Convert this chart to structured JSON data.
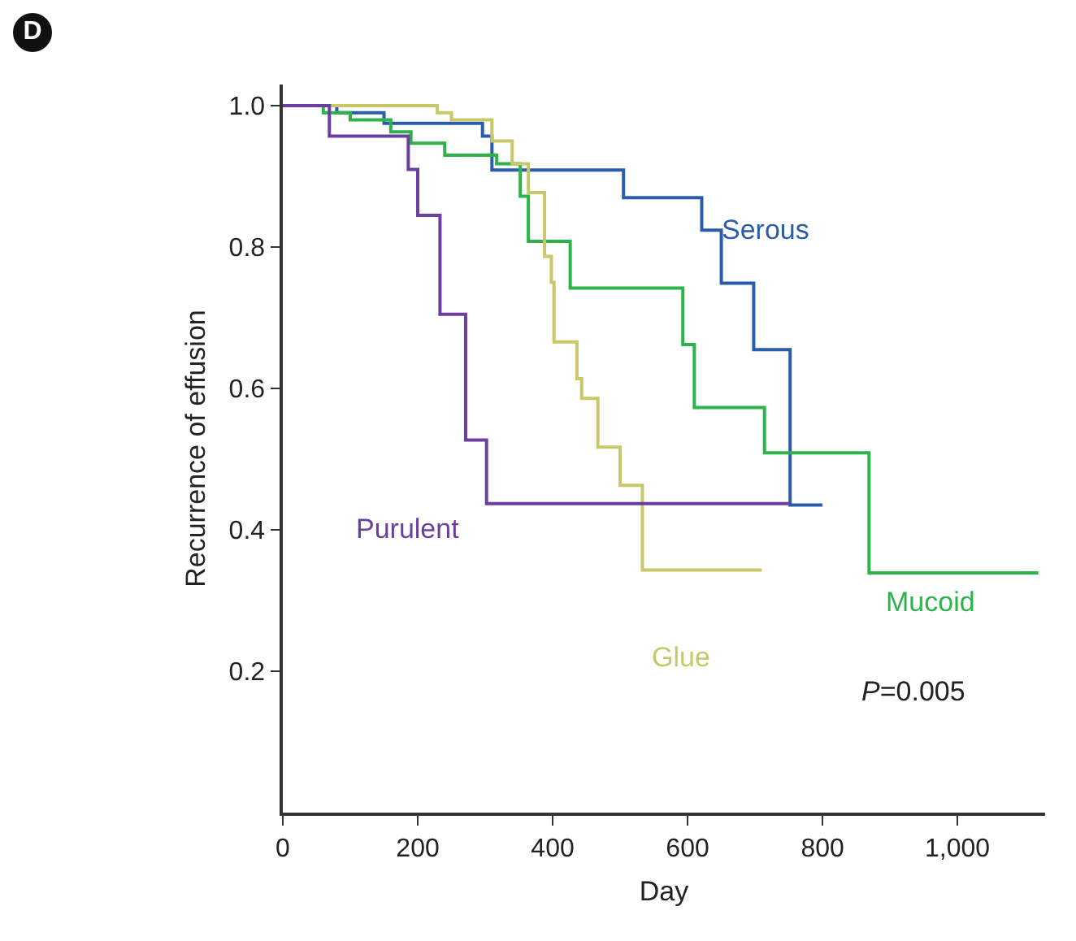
{
  "chart_data": {
    "type": "step",
    "title": "D",
    "xlabel": "Day",
    "ylabel": "Recurrence of effusion",
    "xlim": [
      0,
      1130
    ],
    "ylim": [
      0,
      1.03
    ],
    "xticks": [
      0,
      200,
      400,
      600,
      800,
      {
        "value": 1000,
        "label": "1,000"
      }
    ],
    "yticks": [
      0.2,
      0.4,
      0.6,
      0.8,
      {
        "value": 1,
        "label": "1.0"
      }
    ],
    "grid": false,
    "legend": false,
    "marker": "none",
    "line_style": "solid",
    "annotations": [
      "P=0.005"
    ],
    "series": [
      {
        "name": "Serous",
        "color": "#2a5caa",
        "x": [
          0,
          80,
          150,
          296,
          310,
          505,
          621,
          650,
          698,
          752,
          800
        ],
        "values": [
          1,
          0.99,
          0.975,
          0.957,
          0.909,
          0.87,
          0.824,
          0.749,
          0.655,
          0.435,
          0.435
        ]
      },
      {
        "name": "Mucoid",
        "color": "#2db34a",
        "x": [
          0,
          60,
          100,
          160,
          190,
          240,
          317,
          352,
          364,
          426,
          593,
          610,
          714,
          869,
          1120
        ],
        "values": [
          1,
          0.99,
          0.98,
          0.963,
          0.947,
          0.93,
          0.918,
          0.872,
          0.808,
          0.742,
          0.662,
          0.573,
          0.509,
          0.339,
          0.339
        ]
      },
      {
        "name": "Glue",
        "color": "#c8c86a",
        "x": [
          0,
          229,
          250,
          310,
          340,
          364,
          388,
          398,
          402,
          436,
          443,
          467,
          500,
          533,
          710
        ],
        "values": [
          1,
          0.99,
          0.98,
          0.95,
          0.918,
          0.877,
          0.787,
          0.75,
          0.666,
          0.614,
          0.586,
          0.517,
          0.463,
          0.343,
          0.343
        ]
      },
      {
        "name": "Purulent",
        "color": "#6b3fa0",
        "x": [
          0,
          69,
          186,
          200,
          233,
          271,
          302,
          752
        ],
        "values": [
          1,
          0.957,
          0.91,
          0.845,
          0.705,
          0.527,
          0.437,
          0.437
        ]
      }
    ]
  }
}
